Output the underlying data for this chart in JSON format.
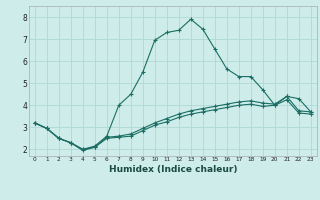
{
  "xlabel": "Humidex (Indice chaleur)",
  "bg_color": "#ceecea",
  "grid_color": "#b0d8d5",
  "line_color": "#1a6e64",
  "xlim": [
    -0.5,
    23.5
  ],
  "ylim": [
    1.7,
    8.5
  ],
  "xticks": [
    0,
    1,
    2,
    3,
    4,
    5,
    6,
    7,
    8,
    9,
    10,
    11,
    12,
    13,
    14,
    15,
    16,
    17,
    18,
    19,
    20,
    21,
    22,
    23
  ],
  "yticks": [
    2,
    3,
    4,
    5,
    6,
    7,
    8
  ],
  "lines": [
    {
      "x": [
        0,
        1,
        2,
        3,
        4,
        5,
        6,
        7,
        8,
        9,
        10,
        11,
        12,
        13,
        14,
        15,
        16,
        17,
        18,
        19,
        20,
        21,
        22,
        23
      ],
      "y": [
        3.2,
        2.95,
        2.5,
        2.3,
        1.95,
        2.1,
        2.5,
        2.55,
        2.6,
        2.85,
        3.1,
        3.25,
        3.45,
        3.6,
        3.7,
        3.8,
        3.9,
        4.0,
        4.05,
        3.95,
        4.0,
        4.25,
        3.65,
        3.6
      ]
    },
    {
      "x": [
        0,
        1,
        2,
        3,
        4,
        5,
        6,
        7,
        8,
        9,
        10,
        11,
        12,
        13,
        14,
        15,
        16,
        17,
        18,
        19,
        20,
        21,
        22,
        23
      ],
      "y": [
        3.2,
        2.95,
        2.5,
        2.3,
        2.0,
        2.1,
        2.55,
        2.6,
        2.7,
        2.95,
        3.2,
        3.4,
        3.6,
        3.75,
        3.85,
        3.95,
        4.05,
        4.15,
        4.2,
        4.1,
        4.05,
        4.4,
        3.75,
        3.7
      ]
    },
    {
      "x": [
        0,
        1,
        2,
        3,
        4,
        5,
        6,
        7,
        8,
        9,
        10,
        11,
        12,
        13,
        14,
        15,
        16,
        17,
        18,
        19,
        20,
        21,
        22,
        23
      ],
      "y": [
        3.2,
        2.95,
        2.5,
        2.3,
        2.0,
        2.15,
        2.6,
        4.0,
        4.5,
        5.5,
        6.95,
        7.3,
        7.4,
        7.9,
        7.45,
        6.55,
        5.65,
        5.3,
        5.3,
        4.7,
        4.0,
        4.4,
        4.3,
        3.7
      ]
    }
  ]
}
